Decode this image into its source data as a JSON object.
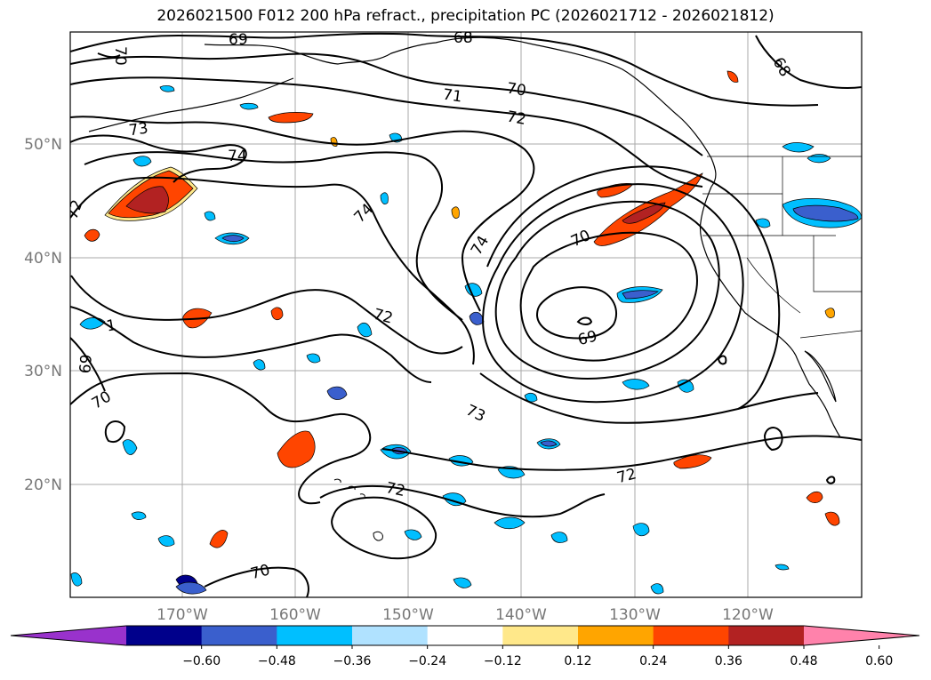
{
  "title": "2026021500 F012 200 hPa refract., precipitation PC (2026021712 - 2026021812)",
  "map": {
    "lon_labels": [
      "170°W",
      "160°W",
      "150°W",
      "140°W",
      "130°W",
      "120°W"
    ],
    "lat_labels": [
      "50°N",
      "40°N",
      "30°N",
      "20°N"
    ],
    "contour_labels": [
      {
        "text": "69",
        "field": "refractivity"
      },
      {
        "text": "68",
        "field": "refractivity"
      },
      {
        "text": "70",
        "field": "refractivity"
      },
      {
        "text": "68",
        "field": "refractivity"
      },
      {
        "text": "71",
        "field": "refractivity"
      },
      {
        "text": "70",
        "field": "refractivity"
      },
      {
        "text": "72",
        "field": "refractivity"
      },
      {
        "text": "73",
        "field": "refractivity"
      },
      {
        "text": "74",
        "field": "refractivity"
      },
      {
        "text": "72",
        "field": "refractivity"
      },
      {
        "text": "74",
        "field": "refractivity"
      },
      {
        "text": "74",
        "field": "refractivity"
      },
      {
        "text": "70",
        "field": "refractivity"
      },
      {
        "text": "72",
        "field": "refractivity"
      },
      {
        "text": "69",
        "field": "refractivity"
      },
      {
        "text": "69",
        "field": "refractivity"
      },
      {
        "text": "70",
        "field": "refractivity"
      },
      {
        "text": "1",
        "field": "refractivity"
      },
      {
        "text": "73",
        "field": "refractivity"
      },
      {
        "text": "72",
        "field": "refractivity"
      },
      {
        "text": "72",
        "field": "refractivity"
      },
      {
        "text": "70",
        "field": "refractivity"
      }
    ]
  },
  "colorbar": {
    "ticks": [
      "−0.60",
      "−0.48",
      "−0.36",
      "−0.24",
      "−0.12",
      "0.12",
      "0.24",
      "0.36",
      "0.48",
      "0.60"
    ],
    "colors": [
      "#9932CC",
      "#00008B",
      "#3A5FCD",
      "#00BFFF",
      "#B0E2FF",
      "#FFFFFF",
      "#FFE88A",
      "#FFA500",
      "#FF4500",
      "#B22222",
      "#FF82AB"
    ],
    "extend": "both"
  },
  "colors": {
    "grid": "#aaaaaa",
    "contour": "#000000",
    "coast": "#000000"
  }
}
